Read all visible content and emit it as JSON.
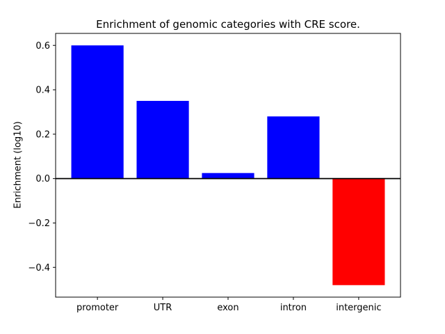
{
  "chart_data": {
    "type": "bar",
    "title": "Enrichment of genomic categories with CRE score.",
    "xlabel": "",
    "ylabel": "Enrichment (log10)",
    "categories": [
      "promoter",
      "UTR",
      "exon",
      "intron",
      "intergenic"
    ],
    "values": [
      0.6,
      0.35,
      0.025,
      0.28,
      -0.48
    ],
    "bar_colors": [
      "#0000ff",
      "#0000ff",
      "#0000ff",
      "#0000ff",
      "#ff0000"
    ],
    "positive_color": "#0000ff",
    "negative_color": "#ff0000",
    "axis_color": "#000000",
    "background_color": "#ffffff",
    "yticks": [
      -0.4,
      -0.2,
      0.0,
      0.2,
      0.4,
      0.6
    ],
    "ylim": [
      -0.534,
      0.654
    ],
    "bar_width": 0.8,
    "grid": false,
    "legend": false,
    "zero_line": true
  }
}
